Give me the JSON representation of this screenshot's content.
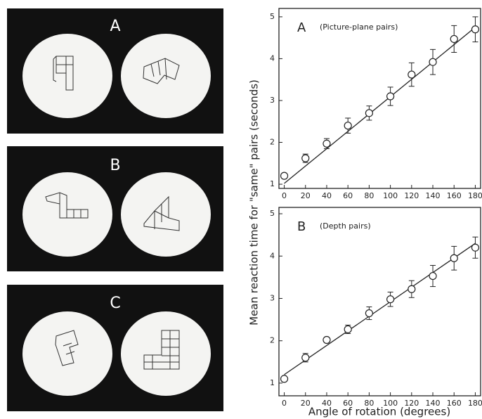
{
  "stimulus_panels": {
    "labels": [
      "A",
      "B",
      "C"
    ]
  },
  "chart_data": [
    {
      "type": "scatter",
      "panel_label": "A",
      "title": "(Picture-plane pairs)",
      "ylabel": "Mean reaction time for \"same\" pairs (seconds)",
      "x": [
        0,
        20,
        40,
        60,
        80,
        100,
        120,
        140,
        160,
        180
      ],
      "values": [
        1.2,
        1.62,
        1.97,
        2.4,
        2.7,
        3.1,
        3.62,
        3.92,
        4.47,
        4.7
      ],
      "errors": [
        0.05,
        0.1,
        0.12,
        0.18,
        0.17,
        0.22,
        0.28,
        0.3,
        0.32,
        0.3
      ],
      "fit": {
        "x": [
          0,
          180
        ],
        "values": [
          1.02,
          4.75
        ]
      },
      "xlim": [
        -5,
        185
      ],
      "ylim": [
        0.9,
        5.2
      ],
      "xticks": [
        0,
        20,
        40,
        60,
        80,
        100,
        120,
        140,
        160,
        180
      ],
      "yticks": [
        1,
        2,
        3,
        4,
        5
      ]
    },
    {
      "type": "scatter",
      "panel_label": "B",
      "title": "(Depth pairs)",
      "xlabel": "Angle of rotation (degrees)",
      "x": [
        0,
        20,
        40,
        60,
        80,
        100,
        120,
        140,
        160,
        180
      ],
      "values": [
        1.1,
        1.6,
        2.02,
        2.27,
        2.65,
        2.98,
        3.22,
        3.53,
        3.95,
        4.2
      ],
      "errors": [
        0.03,
        0.1,
        0.03,
        0.1,
        0.15,
        0.17,
        0.2,
        0.25,
        0.28,
        0.25
      ],
      "fit": {
        "x": [
          0,
          180
        ],
        "values": [
          1.2,
          4.3
        ]
      },
      "xlim": [
        -5,
        185
      ],
      "ylim": [
        0.7,
        5.15
      ],
      "xticks": [
        0,
        20,
        40,
        60,
        80,
        100,
        120,
        140,
        160,
        180
      ],
      "yticks": [
        1,
        2,
        3,
        4,
        5
      ]
    }
  ]
}
